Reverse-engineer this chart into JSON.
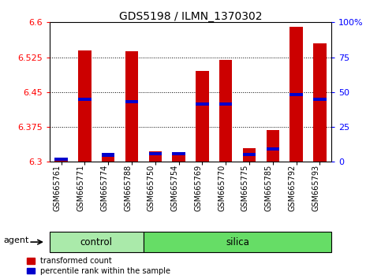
{
  "title": "GDS5198 / ILMN_1370302",
  "samples": [
    "GSM665761",
    "GSM665771",
    "GSM665774",
    "GSM665788",
    "GSM665750",
    "GSM665754",
    "GSM665769",
    "GSM665770",
    "GSM665775",
    "GSM665785",
    "GSM665792",
    "GSM665793"
  ],
  "groups": [
    "control",
    "control",
    "control",
    "control",
    "silica",
    "silica",
    "silica",
    "silica",
    "silica",
    "silica",
    "silica",
    "silica"
  ],
  "red_values": [
    6.302,
    6.54,
    6.312,
    6.538,
    6.322,
    6.318,
    6.495,
    6.52,
    6.33,
    6.368,
    6.59,
    6.555
  ],
  "blue_values": [
    6.305,
    6.435,
    6.315,
    6.43,
    6.318,
    6.318,
    6.425,
    6.425,
    6.316,
    6.328,
    6.445,
    6.435
  ],
  "ymin": 6.3,
  "ymax": 6.6,
  "yticks": [
    6.3,
    6.375,
    6.45,
    6.525,
    6.6
  ],
  "ytick_labels": [
    "6.3",
    "6.375",
    "6.45",
    "6.525",
    "6.6"
  ],
  "right_yticks": [
    0,
    25,
    50,
    75,
    100
  ],
  "right_ytick_labels": [
    "0",
    "25",
    "50",
    "75",
    "100%"
  ],
  "bar_color": "#cc0000",
  "blue_color": "#0000cc",
  "control_color": "#aaeaaa",
  "silica_color": "#66dd66",
  "legend_red": "transformed count",
  "legend_blue": "percentile rank within the sample",
  "bar_width": 0.55,
  "tick_label_fontsize": 7,
  "group_label_fontsize": 8.5,
  "title_fontsize": 10,
  "control_count": 4,
  "n": 12
}
